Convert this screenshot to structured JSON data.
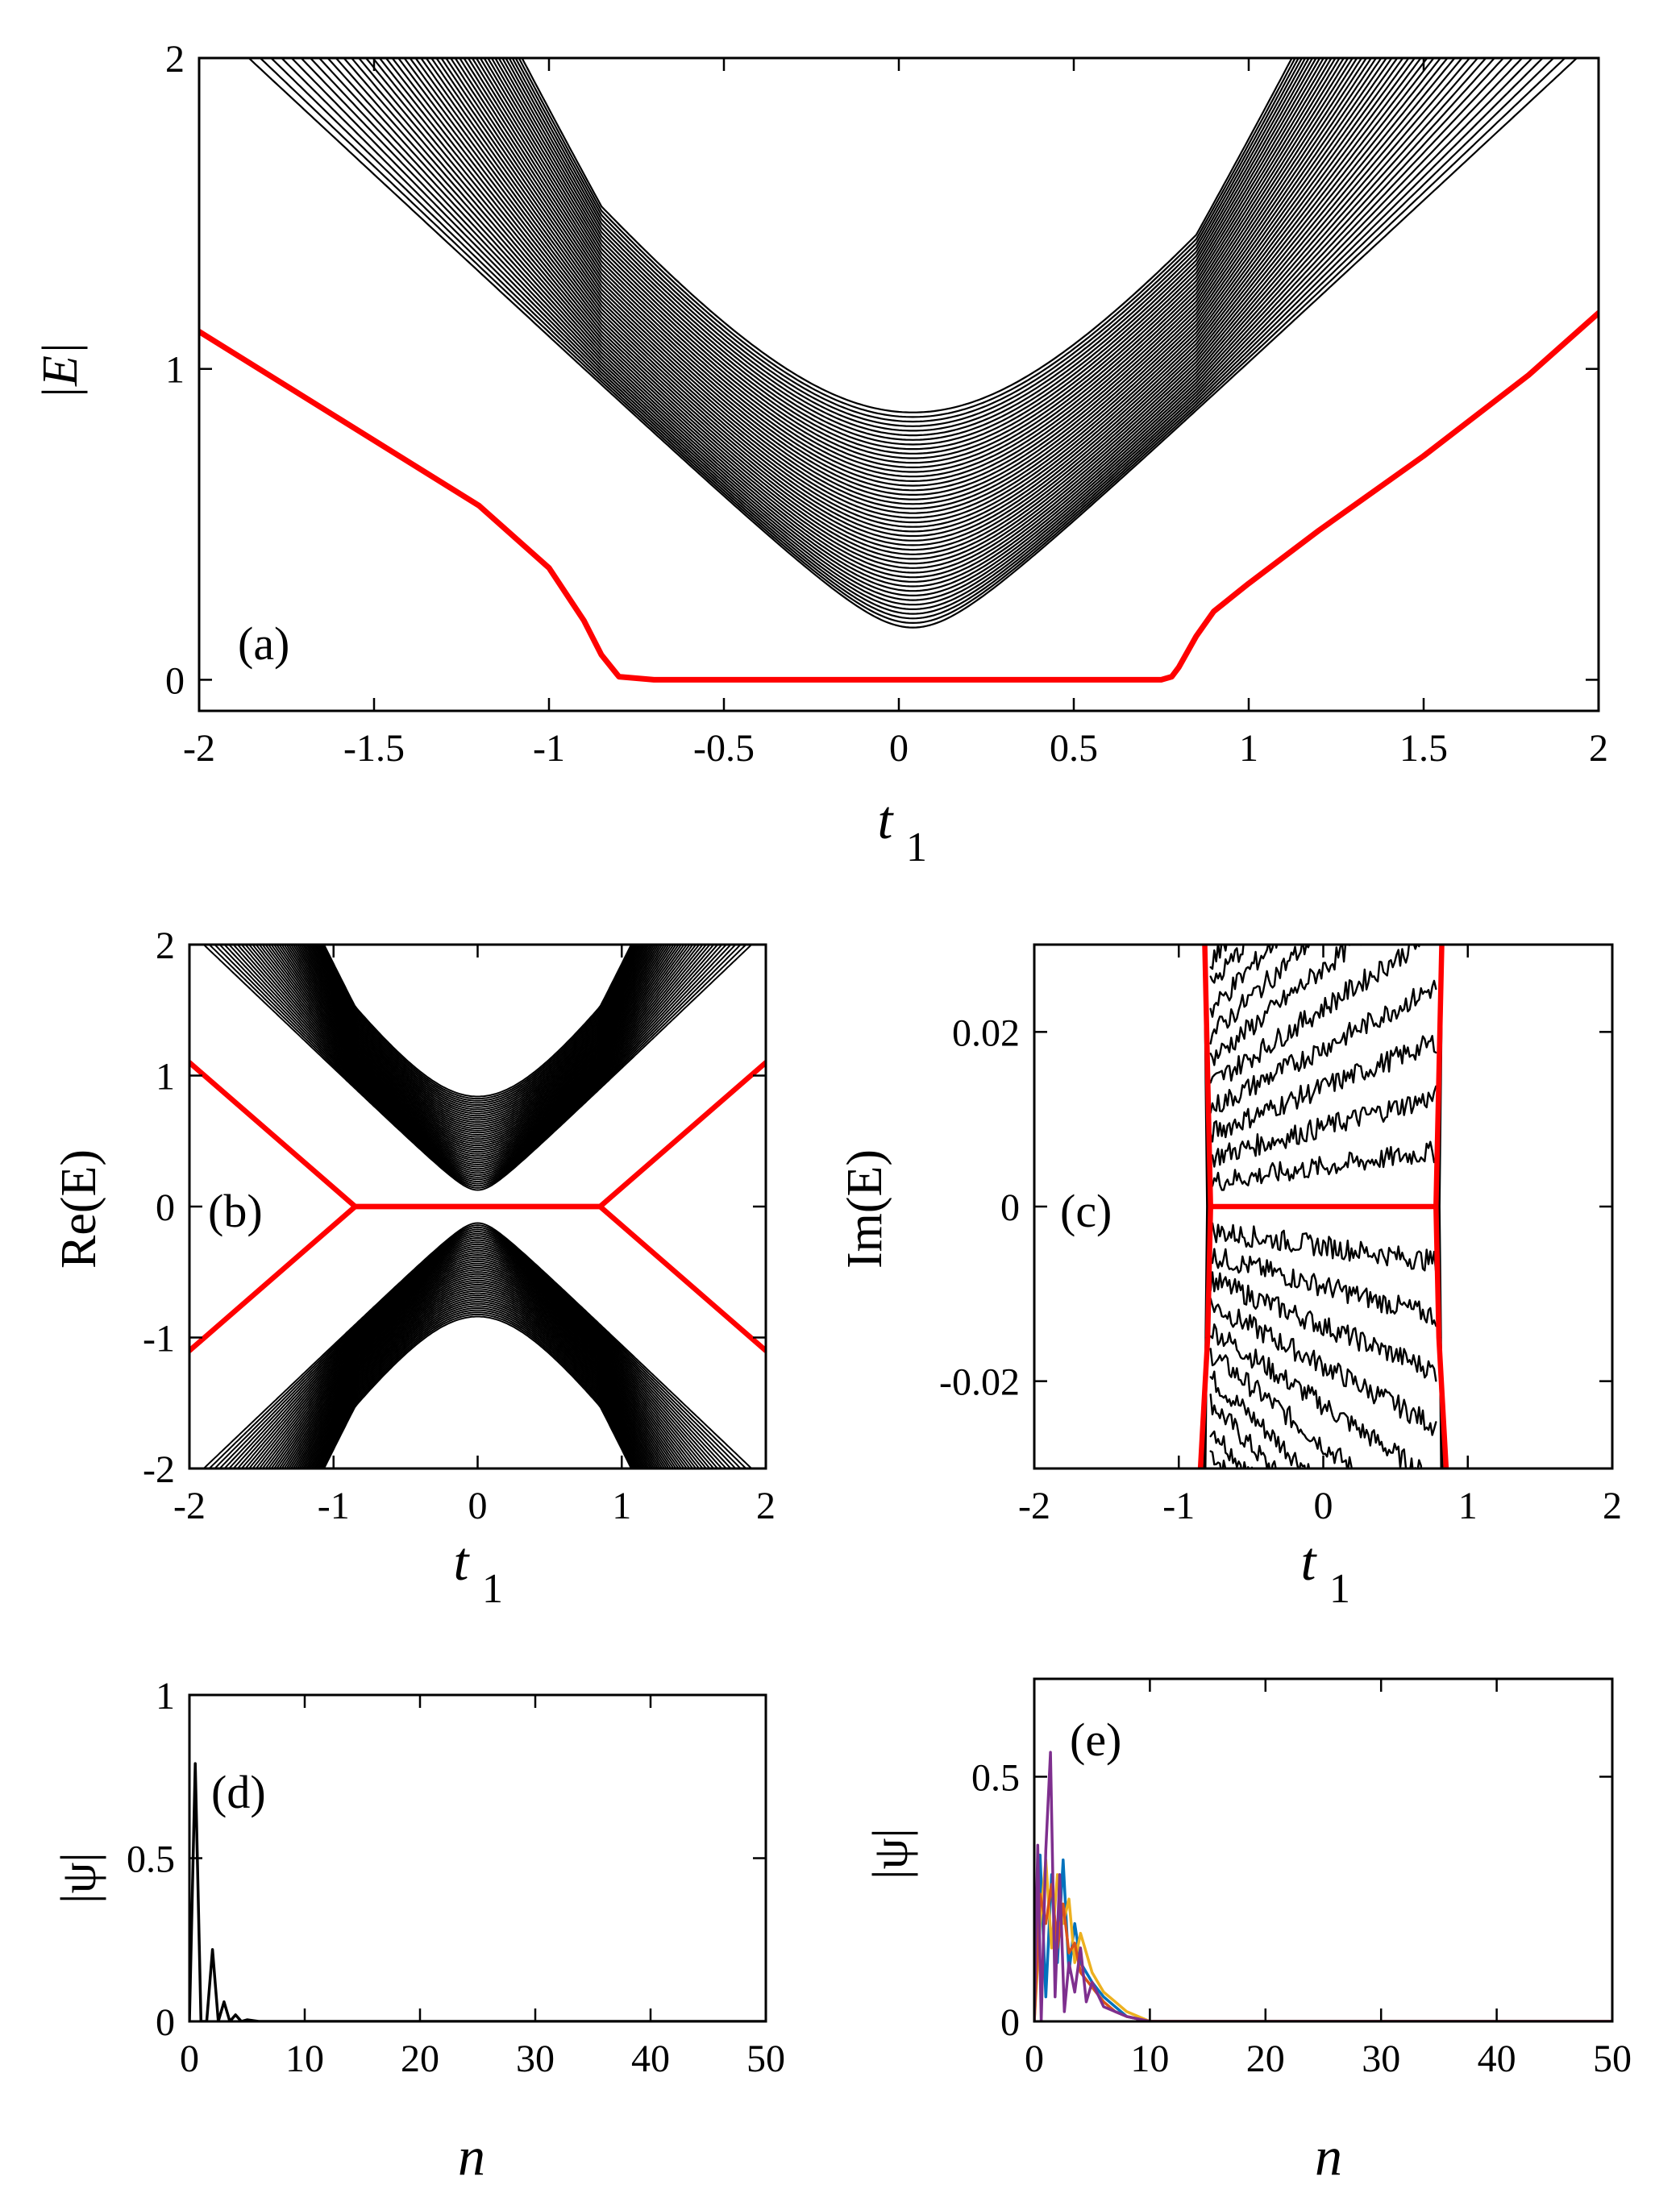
{
  "figure": {
    "panels": [
      {
        "id": "a",
        "label": "(a)"
      },
      {
        "id": "b",
        "label": "(b)"
      },
      {
        "id": "c",
        "label": "(c)"
      },
      {
        "id": "d",
        "label": "(d)"
      },
      {
        "id": "e",
        "label": "(e)"
      }
    ]
  },
  "chart_data": [
    {
      "panel": "(a)",
      "type": "line",
      "xlabel": "t",
      "xlabel_subscript": "1",
      "ylabel": "|E|",
      "xlim": [
        -2,
        2
      ],
      "ylim": [
        -0.1,
        2
      ],
      "xticks": [
        "-2",
        "-1.5",
        "-1",
        "-0.5",
        "0",
        "0.5",
        "1",
        "1.5",
        "2"
      ],
      "yticks": [
        "0",
        "1",
        "2"
      ],
      "band_color": "#000000",
      "highlight_color": "#ff0000",
      "bulk_band_count": 48,
      "bulk_band_description_free": true,
      "highlight_series": {
        "x": [
          -2.0,
          -1.6,
          -1.2,
          -1.0,
          -0.9,
          -0.85,
          -0.8,
          -0.7,
          -0.5,
          0.0,
          0.5,
          0.7,
          0.75,
          0.78,
          0.8,
          0.85,
          0.9,
          1.0,
          1.2,
          1.5,
          1.8,
          2.0
        ],
        "y": [
          1.12,
          0.84,
          0.56,
          0.36,
          0.19,
          0.08,
          0.01,
          0.0,
          0.0,
          0.0,
          0.0,
          0.0,
          0.0,
          0.01,
          0.04,
          0.14,
          0.22,
          0.31,
          0.48,
          0.72,
          0.98,
          1.18
        ]
      },
      "gap_crossing": {
        "x": 0.04,
        "y": 0.84
      }
    },
    {
      "panel": "(b)",
      "type": "line",
      "xlabel": "t",
      "xlabel_subscript": "1",
      "ylabel": "Re(E)",
      "xlim": [
        -2,
        2
      ],
      "ylim": [
        -2,
        2
      ],
      "xticks": [
        "-2",
        "-1",
        "0",
        "1",
        "2"
      ],
      "yticks": [
        "-2",
        "-1",
        "0",
        "1",
        "2"
      ],
      "band_color": "#000000",
      "highlight_color": "#ff0000",
      "highlight_series": [
        {
          "x": [
            -2.0,
            -0.85,
            0.85,
            2.0
          ],
          "y": [
            1.1,
            0.0,
            0.0,
            1.1
          ]
        },
        {
          "x": [
            -2.0,
            -0.85,
            0.85,
            2.0
          ],
          "y": [
            -1.1,
            0.0,
            0.0,
            -1.1
          ]
        }
      ],
      "gap_crossing": {
        "x": 0.0,
        "y": 0.84
      }
    },
    {
      "panel": "(c)",
      "type": "line",
      "xlabel": "t",
      "xlabel_subscript": "1",
      "ylabel": "Im(E)",
      "xlim": [
        -2,
        2
      ],
      "ylim": [
        -0.03,
        0.03
      ],
      "xticks": [
        "-2",
        "-1",
        "0",
        "1",
        "2"
      ],
      "yticks": [
        "-0.02",
        "0",
        "0.02"
      ],
      "band_color": "#000000",
      "highlight_color": "#ff0000",
      "highlight_series": [
        {
          "x": [
            -0.78,
            0.78
          ],
          "y": [
            0.0,
            0.0
          ]
        },
        {
          "x": [
            -0.82,
            -0.8,
            -0.78
          ],
          "y": [
            0.03,
            0.015,
            0.0
          ]
        },
        {
          "x": [
            -0.85,
            -0.8,
            -0.78
          ],
          "y": [
            -0.03,
            -0.015,
            0.0
          ]
        },
        {
          "x": [
            0.82,
            0.8,
            0.78
          ],
          "y": [
            0.03,
            0.015,
            0.0
          ]
        },
        {
          "x": [
            0.85,
            0.8,
            0.78
          ],
          "y": [
            -0.03,
            -0.015,
            0.0
          ]
        }
      ]
    },
    {
      "panel": "(d)",
      "type": "line",
      "xlabel": "n",
      "ylabel": "|ψ|",
      "xlim": [
        0,
        50
      ],
      "ylim": [
        0,
        1
      ],
      "xticks": [
        "0",
        "10",
        "20",
        "30",
        "40",
        "50"
      ],
      "yticks": [
        "0",
        "0.5",
        "1"
      ],
      "series": [
        {
          "color": "#000000",
          "x": [
            0,
            0.5,
            1,
            1.5,
            2,
            2.5,
            3,
            3.5,
            4,
            4.5,
            5,
            6,
            10,
            50
          ],
          "y": [
            0.0,
            0.79,
            0.0,
            0.0,
            0.22,
            0.0,
            0.06,
            0.0,
            0.02,
            0.0,
            0.005,
            0.0,
            0.0,
            0.0
          ]
        }
      ]
    },
    {
      "panel": "(e)",
      "type": "line",
      "xlabel": "n",
      "ylabel": "|ψ|",
      "xlim": [
        0,
        50
      ],
      "ylim": [
        0,
        0.7
      ],
      "xticks": [
        "0",
        "10",
        "20",
        "30",
        "40",
        "50"
      ],
      "yticks": [
        "0",
        "0.5"
      ],
      "series": [
        {
          "color": "#0072bd",
          "x": [
            0,
            0.5,
            1,
            1.5,
            2,
            2.5,
            3,
            3.5,
            4,
            5,
            6,
            7,
            8,
            10,
            50
          ],
          "y": [
            0.0,
            0.34,
            0.05,
            0.3,
            0.12,
            0.33,
            0.1,
            0.2,
            0.12,
            0.08,
            0.05,
            0.03,
            0.01,
            0.0,
            0.0
          ]
        },
        {
          "color": "#edb120",
          "x": [
            0,
            0.5,
            1,
            1.5,
            2,
            2.5,
            3,
            3.5,
            4,
            5,
            6,
            7,
            8,
            10,
            50
          ],
          "y": [
            0.0,
            0.2,
            0.33,
            0.15,
            0.3,
            0.2,
            0.25,
            0.12,
            0.18,
            0.1,
            0.06,
            0.04,
            0.02,
            0.0,
            0.0
          ]
        },
        {
          "color": "#d95319",
          "x": [
            0,
            0.5,
            1,
            1.5,
            2,
            2.5,
            3,
            3.5,
            4,
            5,
            6,
            7,
            8,
            10,
            50
          ],
          "y": [
            0.0,
            0.26,
            0.2,
            0.28,
            0.15,
            0.24,
            0.14,
            0.16,
            0.1,
            0.07,
            0.04,
            0.02,
            0.01,
            0.0,
            0.0
          ]
        },
        {
          "color": "#7e2f8e",
          "x": [
            0,
            0.3,
            0.6,
            1.0,
            1.4,
            1.8,
            2.2,
            2.6,
            3.0,
            3.5,
            4,
            4.5,
            5,
            6,
            7,
            8,
            10,
            50
          ],
          "y": [
            0.0,
            0.36,
            0.0,
            0.35,
            0.55,
            0.05,
            0.3,
            0.02,
            0.12,
            0.06,
            0.15,
            0.04,
            0.08,
            0.03,
            0.02,
            0.01,
            0.0,
            0.0
          ]
        }
      ]
    }
  ]
}
